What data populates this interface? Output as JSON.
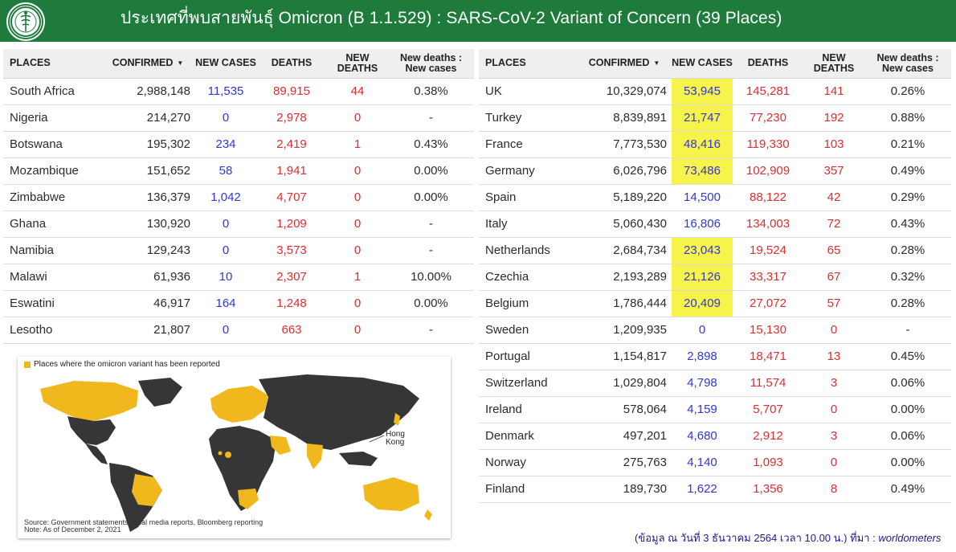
{
  "header": {
    "title": "ประเทศที่พบสายพันธุ์ Omicron (B 1.1.529) : SARS-CoV-2 Variant of Concern (39 Places)",
    "logo_icon": "department-of-disease-control-seal"
  },
  "columns": {
    "places": "PLACES",
    "confirmed": "CONFIRMED",
    "new_cases": "NEW CASES",
    "deaths": "DEATHS",
    "new_deaths": "NEW DEATHS",
    "ratio_line1": "New deaths :",
    "ratio_line2": "New cases",
    "sort_icon": "sort-descending-icon"
  },
  "colors": {
    "header_green": "#1e7b3c",
    "new_cases_blue": "#2f37d6",
    "deaths_red": "#dc2e2e",
    "highlight_yellow": "#f6f34a",
    "map_land_dark": "#363636",
    "map_land_reported": "#f0b81d"
  },
  "left_table": [
    {
      "place": "South Africa",
      "confirmed": "2,988,148",
      "new_cases": "11,535",
      "deaths": "89,915",
      "new_deaths": "44",
      "ratio": "0.38%"
    },
    {
      "place": "Nigeria",
      "confirmed": "214,270",
      "new_cases": "0",
      "deaths": "2,978",
      "new_deaths": "0",
      "ratio": "-"
    },
    {
      "place": "Botswana",
      "confirmed": "195,302",
      "new_cases": "234",
      "deaths": "2,419",
      "new_deaths": "1",
      "ratio": "0.43%"
    },
    {
      "place": "Mozambique",
      "confirmed": "151,652",
      "new_cases": "58",
      "deaths": "1,941",
      "new_deaths": "0",
      "ratio": "0.00%"
    },
    {
      "place": "Zimbabwe",
      "confirmed": "136,379",
      "new_cases": "1,042",
      "deaths": "4,707",
      "new_deaths": "0",
      "ratio": "0.00%"
    },
    {
      "place": "Ghana",
      "confirmed": "130,920",
      "new_cases": "0",
      "deaths": "1,209",
      "new_deaths": "0",
      "ratio": "-"
    },
    {
      "place": "Namibia",
      "confirmed": "129,243",
      "new_cases": "0",
      "deaths": "3,573",
      "new_deaths": "0",
      "ratio": "-"
    },
    {
      "place": "Malawi",
      "confirmed": "61,936",
      "new_cases": "10",
      "deaths": "2,307",
      "new_deaths": "1",
      "ratio": "10.00%"
    },
    {
      "place": "Eswatini",
      "confirmed": "46,917",
      "new_cases": "164",
      "deaths": "1,248",
      "new_deaths": "0",
      "ratio": "0.00%"
    },
    {
      "place": "Lesotho",
      "confirmed": "21,807",
      "new_cases": "0",
      "deaths": "663",
      "new_deaths": "0",
      "ratio": "-"
    }
  ],
  "right_table": [
    {
      "place": "UK",
      "confirmed": "10,329,074",
      "new_cases": "53,945",
      "highlight": true,
      "deaths": "145,281",
      "new_deaths": "141",
      "ratio": "0.26%"
    },
    {
      "place": "Turkey",
      "confirmed": "8,839,891",
      "new_cases": "21,747",
      "highlight": true,
      "deaths": "77,230",
      "new_deaths": "192",
      "ratio": "0.88%"
    },
    {
      "place": "France",
      "confirmed": "7,773,530",
      "new_cases": "48,416",
      "highlight": true,
      "deaths": "119,330",
      "new_deaths": "103",
      "ratio": "0.21%"
    },
    {
      "place": "Germany",
      "confirmed": "6,026,796",
      "new_cases": "73,486",
      "highlight": true,
      "deaths": "102,909",
      "new_deaths": "357",
      "ratio": "0.49%"
    },
    {
      "place": "Spain",
      "confirmed": "5,189,220",
      "new_cases": "14,500",
      "highlight": false,
      "deaths": "88,122",
      "new_deaths": "42",
      "ratio": "0.29%"
    },
    {
      "place": "Italy",
      "confirmed": "5,060,430",
      "new_cases": "16,806",
      "highlight": false,
      "deaths": "134,003",
      "new_deaths": "72",
      "ratio": "0.43%"
    },
    {
      "place": "Netherlands",
      "confirmed": "2,684,734",
      "new_cases": "23,043",
      "highlight": true,
      "deaths": "19,524",
      "new_deaths": "65",
      "ratio": "0.28%"
    },
    {
      "place": "Czechia",
      "confirmed": "2,193,289",
      "new_cases": "21,126",
      "highlight": true,
      "deaths": "33,317",
      "new_deaths": "67",
      "ratio": "0.32%"
    },
    {
      "place": "Belgium",
      "confirmed": "1,786,444",
      "new_cases": "20,409",
      "highlight": true,
      "deaths": "27,072",
      "new_deaths": "57",
      "ratio": "0.28%"
    },
    {
      "place": "Sweden",
      "confirmed": "1,209,935",
      "new_cases": "0",
      "highlight": false,
      "deaths": "15,130",
      "new_deaths": "0",
      "ratio": "-"
    },
    {
      "place": "Portugal",
      "confirmed": "1,154,817",
      "new_cases": "2,898",
      "highlight": false,
      "deaths": "18,471",
      "new_deaths": "13",
      "ratio": "0.45%"
    },
    {
      "place": "Switzerland",
      "confirmed": "1,029,804",
      "new_cases": "4,798",
      "highlight": false,
      "deaths": "11,574",
      "new_deaths": "3",
      "ratio": "0.06%"
    },
    {
      "place": "Ireland",
      "confirmed": "578,064",
      "new_cases": "4,159",
      "highlight": false,
      "deaths": "5,707",
      "new_deaths": "0",
      "ratio": "0.00%"
    },
    {
      "place": "Denmark",
      "confirmed": "497,201",
      "new_cases": "4,680",
      "highlight": false,
      "deaths": "2,912",
      "new_deaths": "3",
      "ratio": "0.06%"
    },
    {
      "place": "Norway",
      "confirmed": "275,763",
      "new_cases": "4,140",
      "highlight": false,
      "deaths": "1,093",
      "new_deaths": "0",
      "ratio": "0.00%"
    },
    {
      "place": "Finland",
      "confirmed": "189,730",
      "new_cases": "1,622",
      "highlight": false,
      "deaths": "1,356",
      "new_deaths": "8",
      "ratio": "0.49%"
    }
  ],
  "map": {
    "legend": "Places where the omicron variant has been reported",
    "hk_label_line1": "Hong",
    "hk_label_line2": "Kong",
    "source_line1": "Source: Government statements, local media reports, Bloomberg reporting",
    "source_line2": "Note: As of December 2, 2021"
  },
  "footnote": {
    "text": "(ข้อมูล ณ วันที่ 3 ธันวาคม 2564 เวลา 10.00 น.) ที่มา : ",
    "source": "worldometers"
  }
}
